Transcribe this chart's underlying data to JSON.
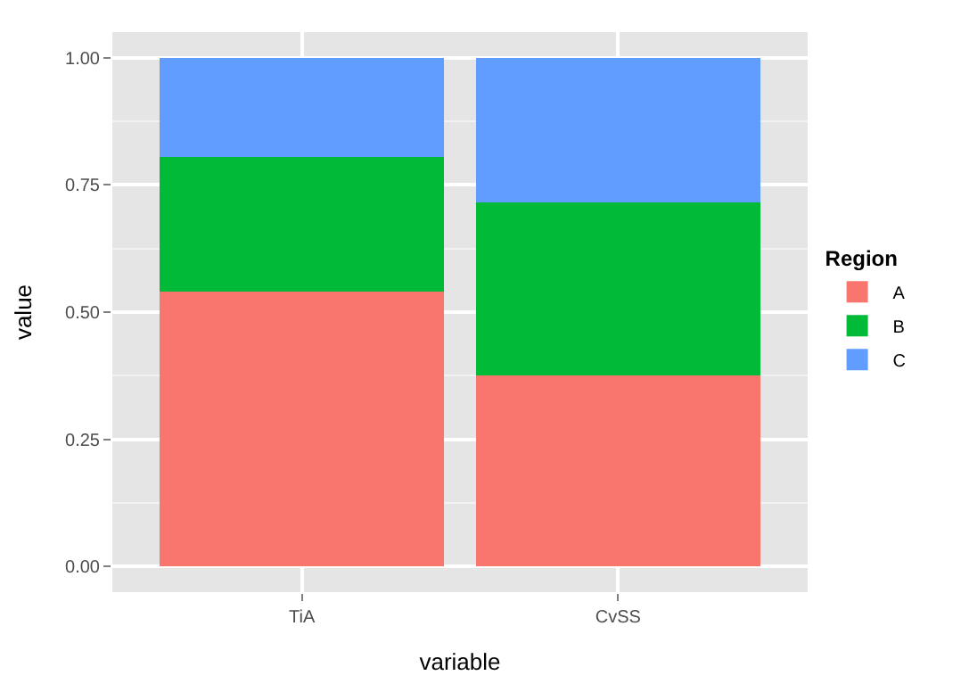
{
  "chart_data": {
    "type": "bar",
    "stacked": true,
    "xlabel": "variable",
    "ylabel": "value",
    "legend_title": "Region",
    "categories": [
      "TiA",
      "CvSS"
    ],
    "series": [
      {
        "name": "A",
        "color": "#f8766d",
        "values": [
          0.54,
          0.375
        ]
      },
      {
        "name": "B",
        "color": "#00ba38",
        "values": [
          0.265,
          0.34
        ]
      },
      {
        "name": "C",
        "color": "#619cff",
        "values": [
          0.195,
          0.285
        ]
      }
    ],
    "ylim": [
      -0.05,
      1.05
    ],
    "yticks": [
      {
        "value": 0,
        "label": "0.00"
      },
      {
        "value": 0.25,
        "label": "0.25"
      },
      {
        "value": 0.5,
        "label": "0.50"
      },
      {
        "value": 0.75,
        "label": "0.75"
      },
      {
        "value": 1,
        "label": "1.00"
      }
    ],
    "grid": true,
    "legend": "right"
  }
}
